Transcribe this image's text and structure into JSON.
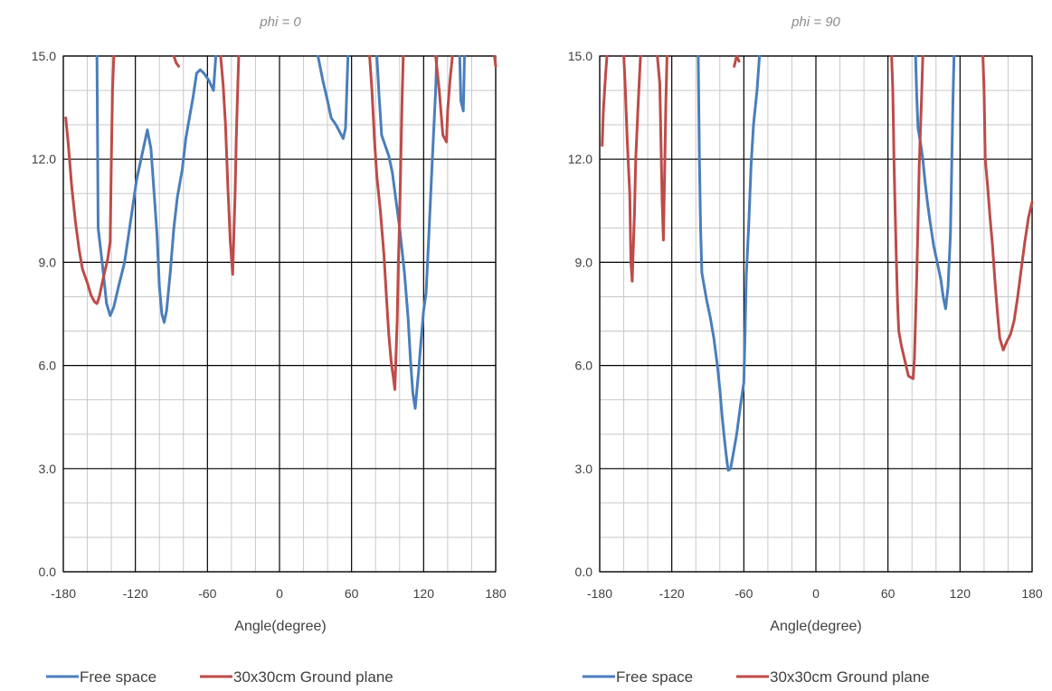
{
  "colors": {
    "free_space": "#4a7ebb",
    "ground_plane": "#be4b48"
  },
  "chart_data": [
    {
      "type": "line",
      "title": "phi = 0",
      "xlabel": "Angle(degree)",
      "ylabel": "",
      "xlim": [
        -180,
        180
      ],
      "ylim": [
        0,
        15
      ],
      "xticks": [
        -180,
        -120,
        -60,
        0,
        60,
        120,
        180
      ],
      "yticks": [
        "0.0",
        "3.0",
        "6.0",
        "9.0",
        "12.0",
        "15.0"
      ],
      "legend_position": "bottom",
      "series": [
        {
          "name": "Free space",
          "color": "#4a7ebb",
          "segments": [
            [
              [
                -152,
                15.0
              ],
              [
                -151,
                10.0
              ],
              [
                -147,
                8.8
              ],
              [
                -144,
                7.8
              ],
              [
                -141,
                7.45
              ],
              [
                -138,
                7.7
              ],
              [
                -134,
                8.3
              ],
              [
                -129,
                9.0
              ],
              [
                -124,
                10.2
              ],
              [
                -119,
                11.4
              ],
              [
                -114,
                12.2
              ],
              [
                -110,
                12.85
              ],
              [
                -107,
                12.3
              ],
              [
                -105,
                11.3
              ],
              [
                -102,
                9.8
              ],
              [
                -100,
                8.3
              ],
              [
                -98,
                7.5
              ],
              [
                -96,
                7.25
              ],
              [
                -94,
                7.6
              ],
              [
                -91,
                8.7
              ],
              [
                -88,
                10.0
              ],
              [
                -85,
                10.9
              ],
              [
                -81,
                11.7
              ],
              [
                -78,
                12.6
              ],
              [
                -75,
                13.2
              ],
              [
                -72,
                13.8
              ],
              [
                -69,
                14.5
              ],
              [
                -66,
                14.6
              ],
              [
                -63,
                14.5
              ],
              [
                -59,
                14.3
              ],
              [
                -55,
                14.0
              ],
              [
                -53,
                15.0
              ]
            ],
            [
              [
                32,
                15.0
              ],
              [
                36,
                14.3
              ],
              [
                40,
                13.7
              ],
              [
                43,
                13.2
              ],
              [
                47,
                13.0
              ],
              [
                50,
                12.8
              ],
              [
                53,
                12.6
              ],
              [
                55,
                12.9
              ],
              [
                57,
                15.0
              ]
            ],
            [
              [
                81,
                15.0
              ],
              [
                83,
                13.8
              ],
              [
                85,
                12.7
              ],
              [
                88,
                12.4
              ],
              [
                91,
                12.1
              ],
              [
                94,
                11.6
              ],
              [
                97,
                10.8
              ],
              [
                100,
                10.0
              ],
              [
                104,
                8.7
              ],
              [
                107,
                7.4
              ],
              [
                109,
                6.2
              ],
              [
                111,
                5.2
              ],
              [
                113,
                4.75
              ],
              [
                116,
                5.9
              ],
              [
                118,
                6.8
              ],
              [
                120,
                7.6
              ],
              [
                122,
                8.1
              ],
              [
                124,
                9.5
              ],
              [
                127,
                11.8
              ],
              [
                130,
                14.0
              ],
              [
                131,
                15.0
              ]
            ],
            [
              [
                150,
                15.0
              ],
              [
                151,
                13.7
              ],
              [
                153,
                13.4
              ],
              [
                154,
                15.0
              ]
            ]
          ]
        },
        {
          "name": "30x30cm Ground plane",
          "color": "#be4b48",
          "segments": [
            [
              [
                -178,
                13.2
              ],
              [
                -176,
                12.5
              ],
              [
                -173,
                11.2
              ],
              [
                -170,
                10.2
              ],
              [
                -167,
                9.4
              ],
              [
                -164,
                8.8
              ],
              [
                -160,
                8.4
              ],
              [
                -157,
                8.05
              ],
              [
                -154,
                7.85
              ],
              [
                -152,
                7.8
              ],
              [
                -150,
                8.0
              ],
              [
                -147,
                8.5
              ],
              [
                -143,
                9.1
              ],
              [
                -141,
                9.6
              ],
              [
                -140,
                12.0
              ],
              [
                -139,
                14.0
              ],
              [
                -138,
                15.0
              ]
            ],
            [
              [
                -88,
                15.0
              ],
              [
                -86,
                14.8
              ],
              [
                -84,
                14.7
              ]
            ],
            [
              [
                -49,
                15.0
              ],
              [
                -47,
                14.2
              ],
              [
                -45,
                13.0
              ],
              [
                -43,
                11.2
              ],
              [
                -41,
                9.6
              ],
              [
                -39,
                8.65
              ],
              [
                -37,
                11.0
              ],
              [
                -36,
                12.6
              ],
              [
                -35,
                13.8
              ],
              [
                -34,
                15.0
              ]
            ],
            [
              [
                75,
                15.0
              ],
              [
                77,
                14.0
              ],
              [
                79,
                12.6
              ],
              [
                81,
                11.5
              ],
              [
                84,
                10.5
              ],
              [
                87,
                9.2
              ],
              [
                89,
                8.0
              ],
              [
                91,
                6.9
              ],
              [
                93,
                6.1
              ],
              [
                95,
                5.6
              ],
              [
                96,
                5.3
              ],
              [
                97,
                6.3
              ],
              [
                98,
                7.3
              ],
              [
                99,
                9.0
              ],
              [
                100,
                10.3
              ],
              [
                101,
                12.0
              ],
              [
                102,
                13.6
              ],
              [
                103,
                15.0
              ]
            ],
            [
              [
                130,
                15.0
              ],
              [
                133,
                14.0
              ],
              [
                136,
                12.7
              ],
              [
                139,
                12.5
              ],
              [
                140,
                13.4
              ],
              [
                142,
                14.3
              ],
              [
                144,
                15.0
              ]
            ],
            [
              [
                179,
                15.0
              ],
              [
                180,
                14.7
              ]
            ]
          ]
        }
      ]
    },
    {
      "type": "line",
      "title": "phi = 90",
      "xlabel": "Angle(degree)",
      "ylabel": "",
      "xlim": [
        -180,
        180
      ],
      "ylim": [
        0,
        15
      ],
      "xticks": [
        -180,
        -120,
        -60,
        0,
        60,
        120,
        180
      ],
      "yticks": [
        "0.0",
        "3.0",
        "6.0",
        "9.0",
        "12.0",
        "15.0"
      ],
      "legend_position": "bottom",
      "series": [
        {
          "name": "Free space",
          "color": "#4a7ebb",
          "segments": [
            [
              [
                -98,
                15.0
              ],
              [
                -97,
                12.0
              ],
              [
                -96,
                10.0
              ],
              [
                -95,
                8.7
              ],
              [
                -93,
                8.3
              ],
              [
                -91,
                7.9
              ],
              [
                -88,
                7.4
              ],
              [
                -85,
                6.8
              ],
              [
                -82,
                6.0
              ],
              [
                -80,
                5.3
              ],
              [
                -78,
                4.5
              ],
              [
                -76,
                3.8
              ],
              [
                -74,
                3.2
              ],
              [
                -73,
                2.95
              ],
              [
                -71,
                3.0
              ],
              [
                -69,
                3.4
              ],
              [
                -66,
                4.0
              ],
              [
                -63,
                4.8
              ],
              [
                -60,
                5.5
              ],
              [
                -59,
                7.0
              ],
              [
                -58,
                8.6
              ],
              [
                -56,
                10.0
              ],
              [
                -54,
                11.8
              ],
              [
                -52,
                13.0
              ],
              [
                -49,
                14.0
              ],
              [
                -47,
                15.0
              ]
            ],
            [
              [
                83,
                15.0
              ],
              [
                84,
                13.8
              ],
              [
                85,
                12.9
              ],
              [
                87,
                12.5
              ],
              [
                89,
                12.0
              ],
              [
                91,
                11.3
              ],
              [
                93,
                10.7
              ],
              [
                95,
                10.2
              ],
              [
                98,
                9.5
              ],
              [
                101,
                9.0
              ],
              [
                104,
                8.5
              ],
              [
                106,
                8.0
              ],
              [
                108,
                7.65
              ],
              [
                110,
                8.3
              ],
              [
                112,
                9.8
              ],
              [
                113,
                11.6
              ],
              [
                114,
                13.6
              ],
              [
                115,
                15.0
              ]
            ]
          ]
        },
        {
          "name": "30x30cm Ground plane",
          "color": "#be4b48",
          "segments": [
            [
              [
                -178,
                12.4
              ],
              [
                -177,
                13.4
              ],
              [
                -175,
                14.5
              ],
              [
                -174,
                15.0
              ]
            ],
            [
              [
                -160,
                15.0
              ],
              [
                -159,
                14.3
              ],
              [
                -157,
                12.5
              ],
              [
                -155,
                11.0
              ],
              [
                -154,
                9.0
              ],
              [
                -153,
                8.45
              ],
              [
                -151,
                10.5
              ],
              [
                -150,
                12.0
              ],
              [
                -148,
                13.6
              ],
              [
                -146,
                15.0
              ]
            ],
            [
              [
                -132,
                15.0
              ],
              [
                -130,
                14.2
              ],
              [
                -129,
                12.5
              ],
              [
                -128,
                10.8
              ],
              [
                -127,
                9.65
              ],
              [
                -126,
                11.5
              ],
              [
                -125,
                13.5
              ],
              [
                -124,
                15.0
              ]
            ],
            [
              [
                -68,
                14.7
              ],
              [
                -66,
                15.0
              ],
              [
                -64,
                14.85
              ]
            ],
            [
              [
                63,
                15.0
              ],
              [
                64,
                14.0
              ],
              [
                65,
                12.0
              ],
              [
                66,
                10.5
              ],
              [
                67,
                9.0
              ],
              [
                68,
                7.8
              ],
              [
                69,
                7.0
              ],
              [
                71,
                6.6
              ],
              [
                73,
                6.3
              ],
              [
                75,
                6.0
              ],
              [
                77,
                5.7
              ],
              [
                79,
                5.65
              ],
              [
                81,
                5.62
              ],
              [
                82,
                6.2
              ],
              [
                83,
                7.4
              ],
              [
                84,
                8.6
              ],
              [
                85,
                10.2
              ],
              [
                86,
                11.8
              ],
              [
                88,
                13.8
              ],
              [
                89,
                15.0
              ]
            ],
            [
              [
                139,
                15.0
              ],
              [
                140,
                14.0
              ],
              [
                141,
                12.0
              ],
              [
                143,
                11.2
              ],
              [
                145,
                10.3
              ],
              [
                147,
                9.5
              ],
              [
                149,
                8.5
              ],
              [
                151,
                7.6
              ],
              [
                153,
                6.8
              ],
              [
                156,
                6.45
              ],
              [
                159,
                6.7
              ],
              [
                162,
                6.9
              ],
              [
                165,
                7.3
              ],
              [
                168,
                8.0
              ],
              [
                171,
                8.8
              ],
              [
                174,
                9.6
              ],
              [
                177,
                10.3
              ],
              [
                180,
                10.75
              ]
            ]
          ]
        }
      ]
    }
  ]
}
